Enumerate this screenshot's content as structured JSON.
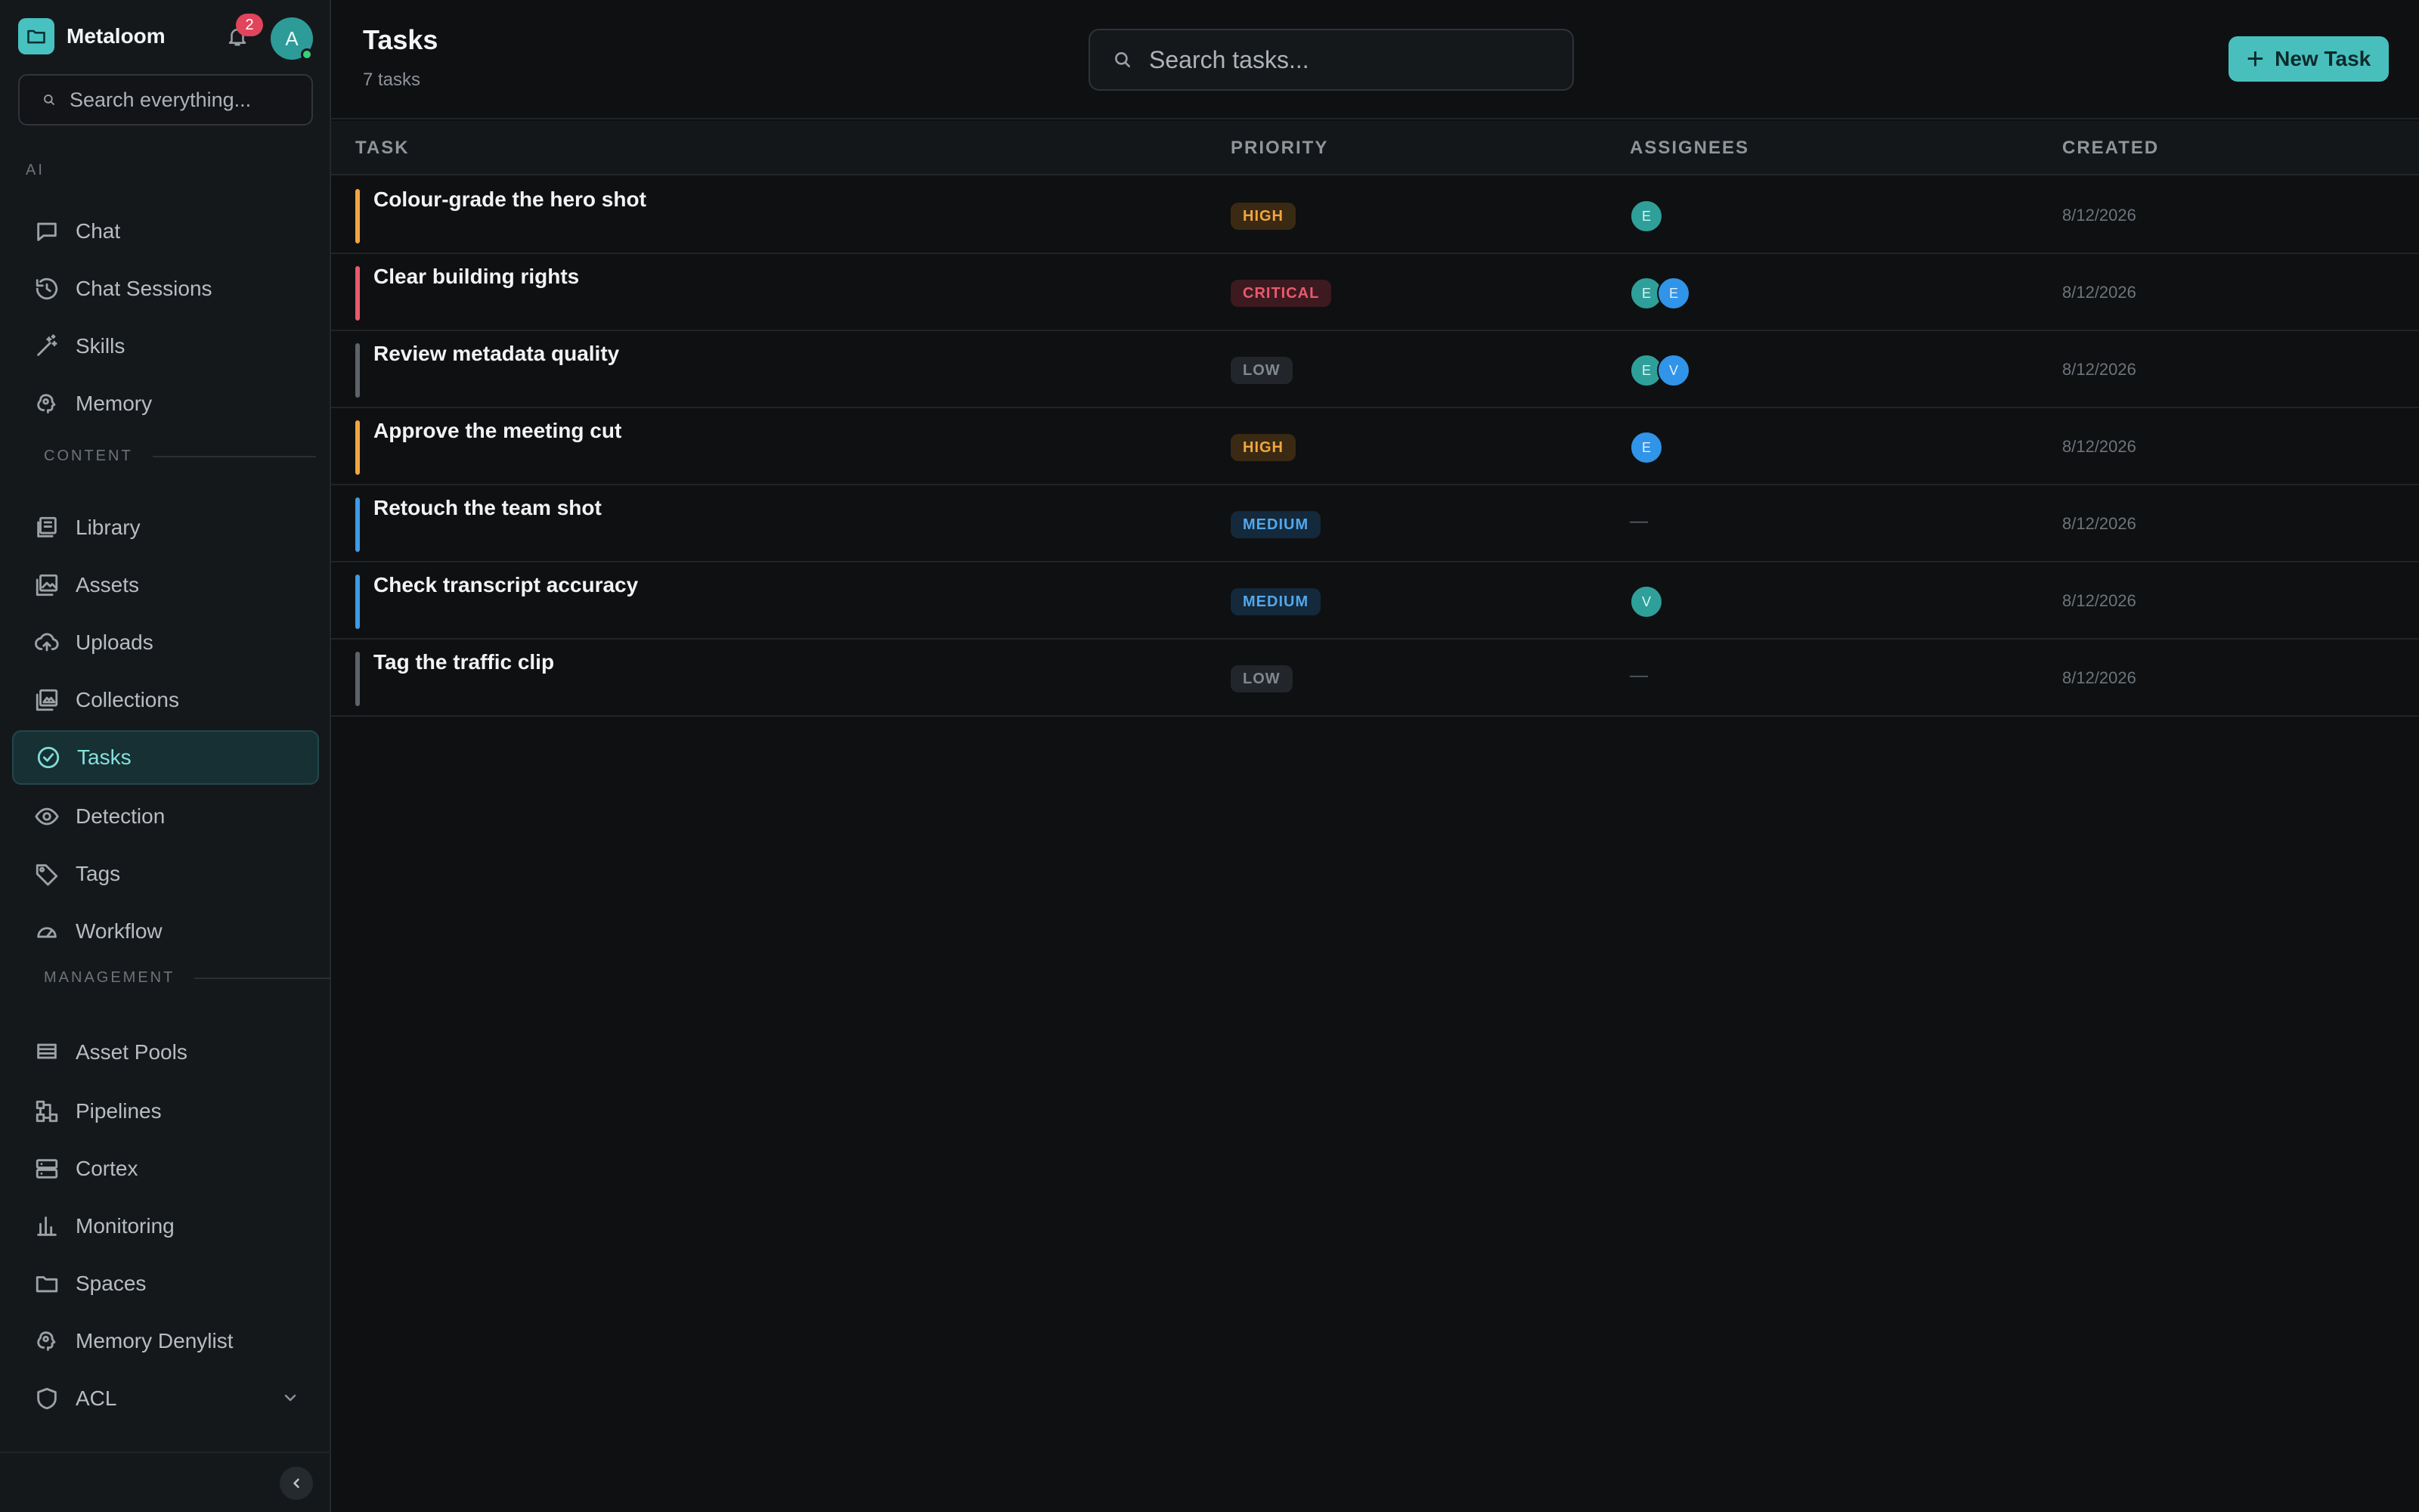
{
  "app": {
    "name": "Metaloom",
    "notification_count": "2",
    "user_initial": "A"
  },
  "global_search": {
    "placeholder": "Search everything..."
  },
  "sidebar": {
    "sections": [
      {
        "label": "AI",
        "items": [
          {
            "label": "Chat",
            "icon": "chat-icon"
          },
          {
            "label": "Chat Sessions",
            "icon": "history-icon"
          },
          {
            "label": "Skills",
            "icon": "magic-wand-icon"
          },
          {
            "label": "Memory",
            "icon": "brain-icon"
          }
        ]
      },
      {
        "label": "CONTENT",
        "items": [
          {
            "label": "Library",
            "icon": "library-icon"
          },
          {
            "label": "Assets",
            "icon": "image-stack-icon"
          },
          {
            "label": "Uploads",
            "icon": "cloud-upload-icon"
          },
          {
            "label": "Collections",
            "icon": "collections-icon"
          },
          {
            "label": "Tasks",
            "icon": "check-circle-icon",
            "active": true
          },
          {
            "label": "Detection",
            "icon": "eye-icon"
          },
          {
            "label": "Tags",
            "icon": "tag-icon"
          },
          {
            "label": "Workflow",
            "icon": "gauge-icon"
          }
        ]
      },
      {
        "label": "MANAGEMENT",
        "items": [
          {
            "label": "Asset Pools",
            "icon": "pools-icon"
          },
          {
            "label": "Pipelines",
            "icon": "pipeline-icon"
          },
          {
            "label": "Cortex",
            "icon": "server-icon"
          },
          {
            "label": "Monitoring",
            "icon": "bar-chart-icon"
          },
          {
            "label": "Spaces",
            "icon": "folder-icon"
          },
          {
            "label": "Memory Denylist",
            "icon": "brain-icon"
          },
          {
            "label": "ACL",
            "icon": "shield-icon"
          }
        ]
      }
    ]
  },
  "page": {
    "title": "Tasks",
    "count_label": "7 tasks"
  },
  "task_search": {
    "placeholder": "Search tasks..."
  },
  "new_task_button": {
    "label": "New Task"
  },
  "table": {
    "columns": {
      "task": "TASK",
      "priority": "PRIORITY",
      "assignees": "ASSIGNEES",
      "created": "CREATED"
    },
    "empty_assignee": "—",
    "rows": [
      {
        "title": "Colour-grade the hero shot",
        "priority": "HIGH",
        "assignees": [
          "E"
        ],
        "created": "8/12/2026"
      },
      {
        "title": "Clear building rights",
        "priority": "CRITICAL",
        "assignees": [
          "E",
          "E"
        ],
        "created": "8/12/2026"
      },
      {
        "title": "Review metadata quality",
        "priority": "LOW",
        "assignees": [
          "E",
          "V"
        ],
        "created": "8/12/2026"
      },
      {
        "title": "Approve the meeting cut",
        "priority": "HIGH",
        "assignees": [
          "E"
        ],
        "created": "8/12/2026"
      },
      {
        "title": "Retouch the team shot",
        "priority": "MEDIUM",
        "assignees": [],
        "created": "8/12/2026"
      },
      {
        "title": "Check transcript accuracy",
        "priority": "MEDIUM",
        "assignees": [
          "V"
        ],
        "created": "8/12/2026"
      },
      {
        "title": "Tag the traffic clip",
        "priority": "LOW",
        "assignees": [],
        "created": "8/12/2026"
      }
    ]
  },
  "colors": {
    "accent": "#48bfbd",
    "high": "#f0a63e",
    "critical": "#e85a6e",
    "low": "#5c636a",
    "medium": "#3f9ae8"
  }
}
